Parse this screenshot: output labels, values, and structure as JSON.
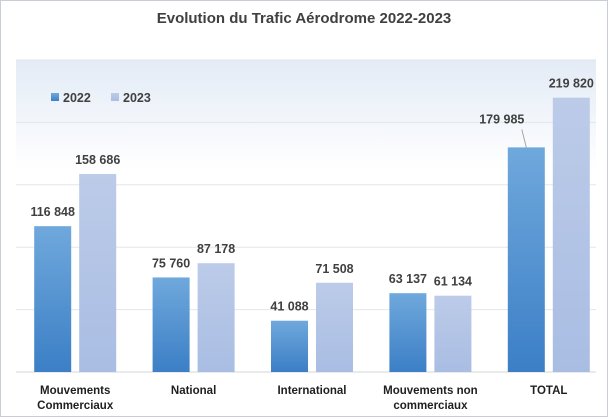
{
  "chart_data": {
    "type": "bar",
    "title": "Evolution du Trafic Aérodrome 2022-2023",
    "categories": [
      [
        "Mouvements",
        "Commerciaux"
      ],
      [
        "National"
      ],
      [
        "International"
      ],
      [
        "Mouvements non",
        "commerciaux"
      ],
      [
        "TOTAL"
      ]
    ],
    "series": [
      {
        "name": "2022",
        "values": [
          116848,
          75760,
          41088,
          63137,
          179985
        ],
        "labels": [
          "116 848",
          "75 760",
          "41 088",
          "63 137",
          "179 985"
        ],
        "color": "#5b9bd5"
      },
      {
        "name": "2023",
        "values": [
          158686,
          87178,
          71508,
          61134,
          219820
        ],
        "labels": [
          "158 686",
          "87 178",
          "71 508",
          "61 134",
          "219 820"
        ],
        "color": "#b4c7e7"
      }
    ],
    "ylim": [
      0,
      250000
    ],
    "grid": true,
    "legend": "top-left",
    "xlabel": "",
    "ylabel": ""
  }
}
